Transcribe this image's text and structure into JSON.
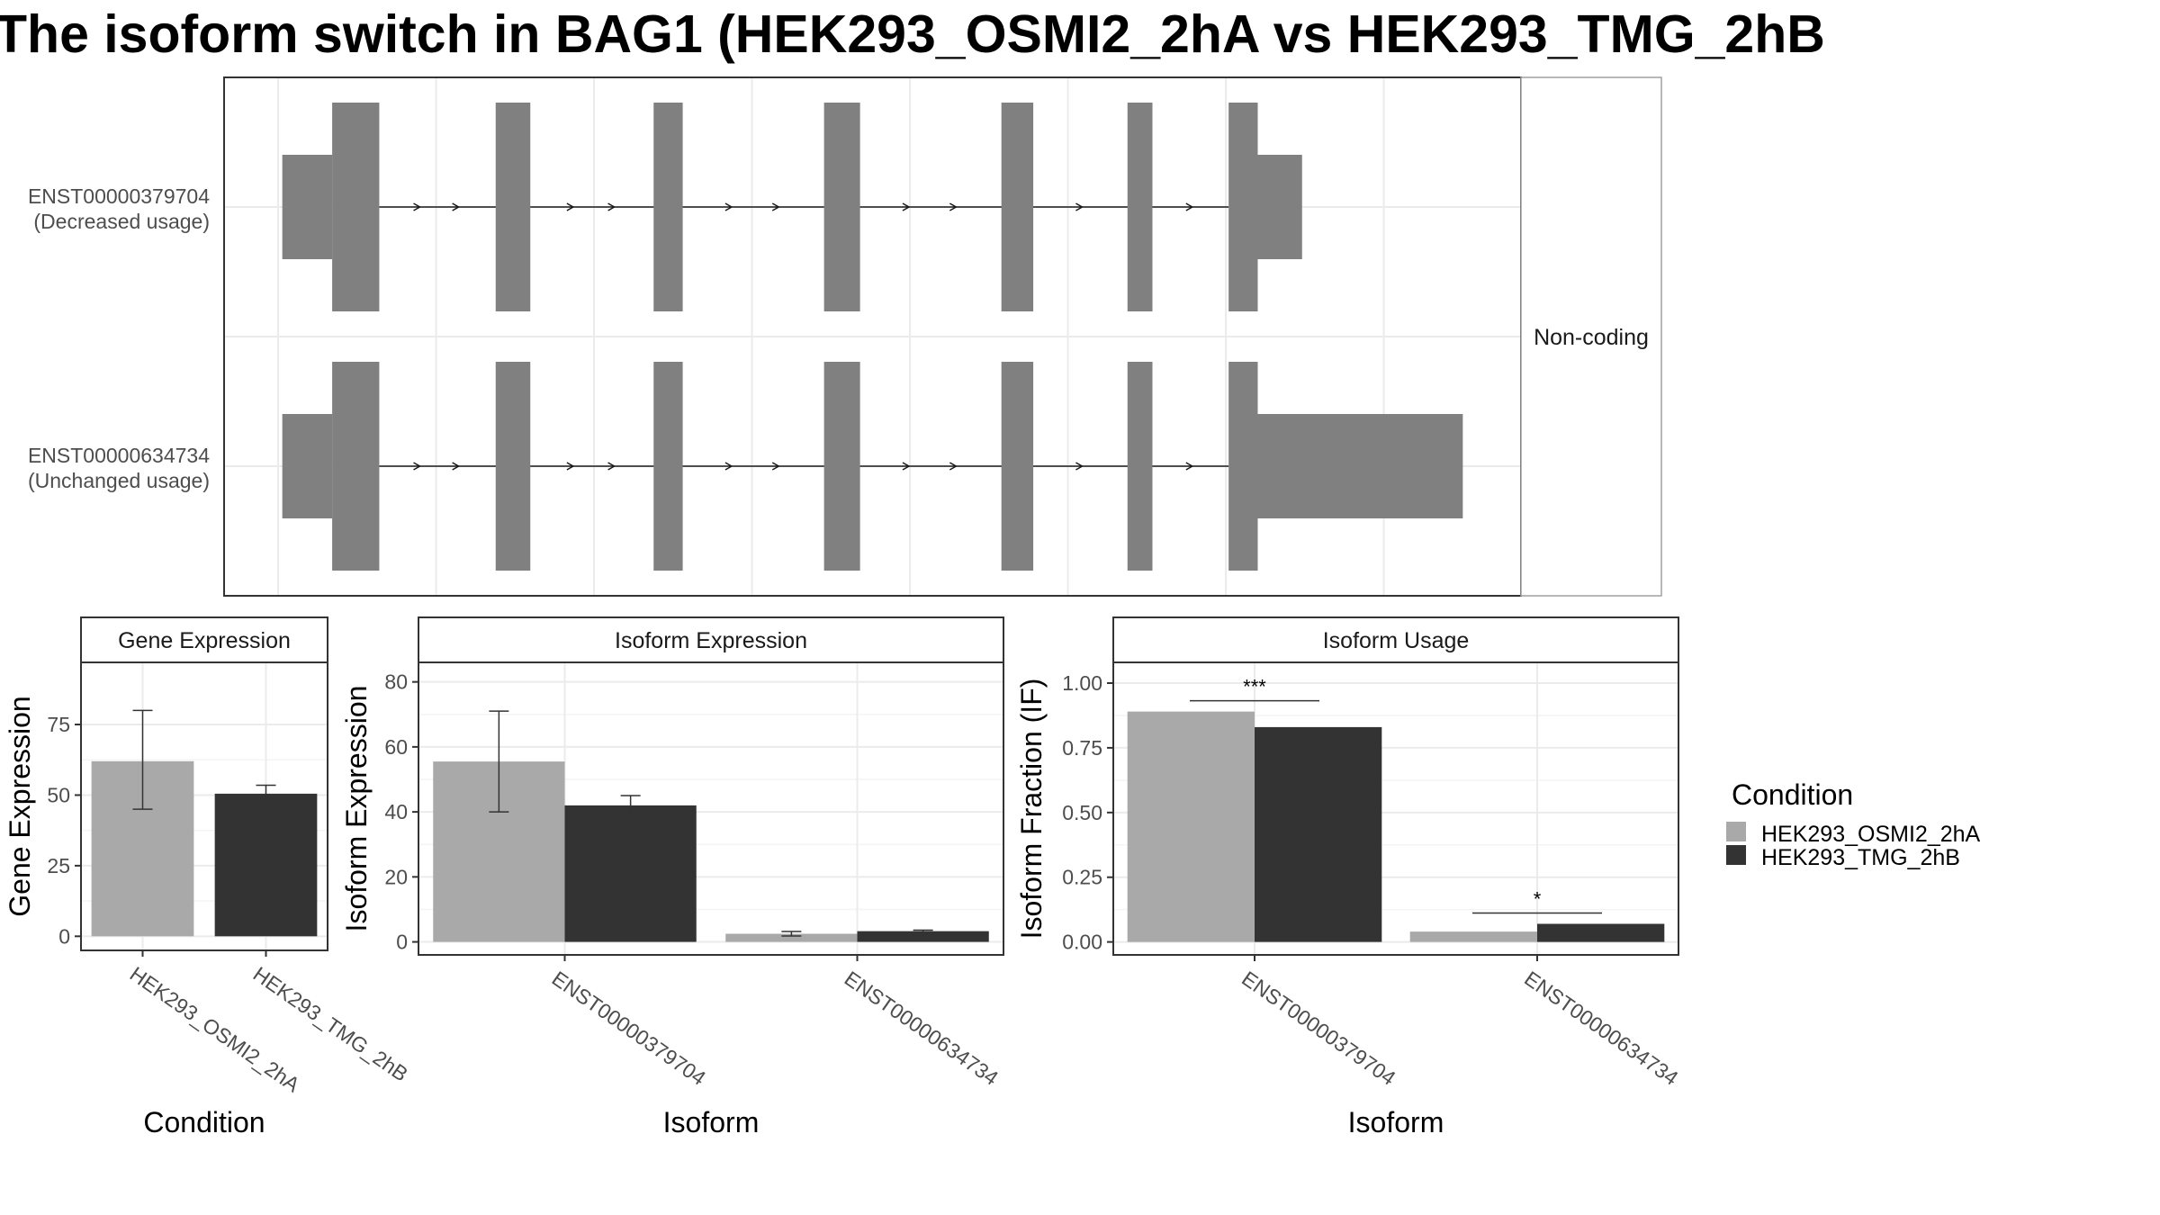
{
  "title": "The isoform switch in BAG1 (HEK293_OSMI2_2hA vs HEK293_TMG_2hB",
  "colors": {
    "cond1": "#a9a9a9",
    "cond2": "#333333",
    "exon": "#808080",
    "intron": "#1a1a1a"
  },
  "chart_data": [
    {
      "type": "gene-structure",
      "isoforms": [
        {
          "id": "ENST00000379704",
          "usage": "(Decreased usage)"
        },
        {
          "id": "ENST00000634734",
          "usage": "(Unchanged usage)"
        }
      ],
      "facet_label": "Non-coding",
      "exons": [
        {
          "utr": [
            204,
            240
          ],
          "cds": [
            240,
            274
          ]
        },
        {
          "cds": [
            358,
            383
          ]
        },
        {
          "cds": [
            472,
            493
          ]
        },
        {
          "cds": [
            595,
            621
          ]
        },
        {
          "cds": [
            723,
            746
          ]
        },
        {
          "cds": [
            814,
            832
          ]
        },
        {
          "cds": [
            887,
            908
          ],
          "utr_by_isoform": [
            [
              908,
              940
            ],
            [
              908,
              1056
            ]
          ]
        }
      ],
      "grid_x": [
        201,
        315,
        429,
        543,
        657,
        771,
        885,
        999
      ],
      "xlim": [
        162,
        1098
      ]
    },
    {
      "type": "bar",
      "strip": "Gene Expression",
      "xlabel": "Condition",
      "ylabel": "Gene Expression",
      "categories": [
        "HEK293_OSMI2_2hA",
        "HEK293_TMG_2hB"
      ],
      "series": [
        {
          "values": [
            62,
            50.5
          ],
          "err_low": [
            45,
            48
          ],
          "err_high": [
            80,
            53.5
          ]
        }
      ],
      "yticks": [
        0,
        25,
        50,
        75
      ],
      "ylim": [
        -5,
        97
      ]
    },
    {
      "type": "bar",
      "strip": "Isoform Expression",
      "xlabel": "Isoform",
      "ylabel": "Isoform Expression",
      "categories": [
        "ENST00000379704",
        "ENST00000634734"
      ],
      "series": [
        {
          "name": "HEK293_OSMI2_2hA",
          "values": [
            55.5,
            2.5
          ],
          "err_low": [
            40,
            1.8
          ],
          "err_high": [
            71,
            3.2
          ]
        },
        {
          "name": "HEK293_TMG_2hB",
          "values": [
            42,
            3.3
          ],
          "err_low": [
            39,
            3.0
          ],
          "err_high": [
            45,
            3.6
          ]
        }
      ],
      "yticks": [
        0,
        20,
        40,
        60,
        80
      ],
      "ylim": [
        -4,
        86
      ]
    },
    {
      "type": "bar",
      "strip": "Isoform Usage",
      "xlabel": "Isoform",
      "ylabel": "Isoform Fraction (IF)",
      "categories": [
        "ENST00000379704",
        "ENST00000634734"
      ],
      "series": [
        {
          "name": "HEK293_OSMI2_2hA",
          "values": [
            0.89,
            0.04
          ]
        },
        {
          "name": "HEK293_TMG_2hB",
          "values": [
            0.83,
            0.07
          ]
        }
      ],
      "yticks": [
        "0.00",
        "0.25",
        "0.50",
        "0.75",
        "1.00"
      ],
      "ylim": [
        -0.05,
        1.08
      ],
      "significance": [
        "***",
        "*"
      ]
    }
  ],
  "legend": {
    "title": "Condition",
    "items": [
      "HEK293_OSMI2_2hA",
      "HEK293_TMG_2hB"
    ]
  }
}
